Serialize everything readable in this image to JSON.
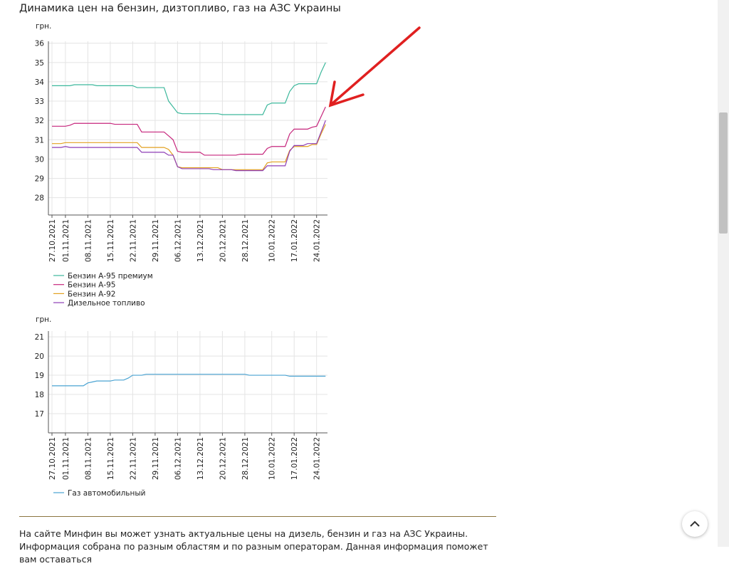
{
  "heading": "Динамика цен на бензин, дизтопливо, газ на АЗС Украины",
  "paragraph": "На сайте Минфин вы может узнать актуальные цены на дизель, бензин и газ на АЗС Украины. Информация собрана по разным областям и по разным операторам. Данная информация поможет вам оставаться",
  "chart_data": [
    {
      "type": "line",
      "y_unit": "грн.",
      "grid": true,
      "categories": [
        "27.10.2021",
        null,
        null,
        "01.11.2021",
        null,
        null,
        null,
        null,
        "08.11.2021",
        null,
        null,
        null,
        null,
        "15.11.2021",
        null,
        null,
        null,
        null,
        "22.11.2021",
        null,
        null,
        null,
        null,
        "29.11.2021",
        null,
        null,
        null,
        null,
        "06.12.2021",
        null,
        null,
        null,
        null,
        "13.12.2021",
        null,
        null,
        null,
        null,
        "20.12.2021",
        null,
        null,
        null,
        null,
        "28.12.2021",
        null,
        null,
        null,
        null,
        null,
        "10.01.2022",
        null,
        null,
        null,
        null,
        "17.01.2022",
        null,
        null,
        null,
        null,
        "24.01.2022",
        null,
        null
      ],
      "ylim": [
        27.1,
        36.1
      ],
      "yticks": [
        28,
        29,
        30,
        31,
        32,
        33,
        34,
        35,
        36
      ],
      "series": [
        {
          "name": "Бензин А-95 премиум",
          "color": "#3db89c",
          "values": [
            33.8,
            33.8,
            33.8,
            33.8,
            33.8,
            33.85,
            33.85,
            33.85,
            33.85,
            33.85,
            33.8,
            33.8,
            33.8,
            33.8,
            33.8,
            33.8,
            33.8,
            33.8,
            33.8,
            33.7,
            33.7,
            33.7,
            33.7,
            33.7,
            33.7,
            33.7,
            33.0,
            32.7,
            32.4,
            32.35,
            32.35,
            32.35,
            32.35,
            32.35,
            32.35,
            32.35,
            32.35,
            32.35,
            32.3,
            32.3,
            32.3,
            32.3,
            32.3,
            32.3,
            32.3,
            32.3,
            32.3,
            32.3,
            32.8,
            32.9,
            32.9,
            32.9,
            32.9,
            33.5,
            33.8,
            33.9,
            33.9,
            33.9,
            33.9,
            33.9,
            34.5,
            35.0
          ]
        },
        {
          "name": "Бензин А-95",
          "color": "#c6267c",
          "values": [
            31.7,
            31.7,
            31.7,
            31.7,
            31.75,
            31.85,
            31.85,
            31.85,
            31.85,
            31.85,
            31.85,
            31.85,
            31.85,
            31.85,
            31.8,
            31.8,
            31.8,
            31.8,
            31.8,
            31.8,
            31.4,
            31.4,
            31.4,
            31.4,
            31.4,
            31.4,
            31.2,
            31.0,
            30.4,
            30.35,
            30.35,
            30.35,
            30.35,
            30.35,
            30.2,
            30.2,
            30.2,
            30.2,
            30.2,
            30.2,
            30.2,
            30.2,
            30.25,
            30.25,
            30.25,
            30.25,
            30.25,
            30.25,
            30.55,
            30.65,
            30.65,
            30.65,
            30.65,
            31.3,
            31.55,
            31.55,
            31.55,
            31.55,
            31.65,
            31.7,
            32.2,
            32.7
          ]
        },
        {
          "name": "Бензин А-92",
          "color": "#e2a120",
          "values": [
            30.8,
            30.8,
            30.8,
            30.85,
            30.85,
            30.85,
            30.85,
            30.85,
            30.85,
            30.85,
            30.85,
            30.85,
            30.85,
            30.85,
            30.85,
            30.85,
            30.85,
            30.85,
            30.85,
            30.85,
            30.6,
            30.6,
            30.6,
            30.6,
            30.6,
            30.6,
            30.5,
            30.2,
            29.6,
            29.55,
            29.55,
            29.55,
            29.55,
            29.55,
            29.55,
            29.55,
            29.55,
            29.55,
            29.45,
            29.45,
            29.45,
            29.45,
            29.45,
            29.45,
            29.45,
            29.45,
            29.45,
            29.45,
            29.8,
            29.85,
            29.85,
            29.85,
            29.85,
            30.45,
            30.65,
            30.65,
            30.65,
            30.65,
            30.75,
            30.75,
            31.3,
            31.8
          ]
        },
        {
          "name": "Дизельное топливо",
          "color": "#8e3db6",
          "values": [
            30.6,
            30.6,
            30.6,
            30.65,
            30.6,
            30.6,
            30.6,
            30.6,
            30.6,
            30.6,
            30.6,
            30.6,
            30.6,
            30.6,
            30.6,
            30.6,
            30.6,
            30.6,
            30.6,
            30.6,
            30.35,
            30.35,
            30.35,
            30.35,
            30.35,
            30.35,
            30.2,
            30.2,
            29.6,
            29.5,
            29.5,
            29.5,
            29.5,
            29.5,
            29.5,
            29.5,
            29.45,
            29.45,
            29.45,
            29.45,
            29.45,
            29.4,
            29.4,
            29.4,
            29.4,
            29.4,
            29.4,
            29.4,
            29.65,
            29.65,
            29.65,
            29.65,
            29.65,
            30.4,
            30.7,
            30.7,
            30.7,
            30.8,
            30.8,
            30.8,
            31.4,
            32.0
          ]
        }
      ]
    },
    {
      "type": "line",
      "y_unit": "грн.",
      "grid": true,
      "categories": [
        "27.10.2021",
        null,
        null,
        "01.11.2021",
        null,
        null,
        null,
        null,
        "08.11.2021",
        null,
        null,
        null,
        null,
        "15.11.2021",
        null,
        null,
        null,
        null,
        "22.11.2021",
        null,
        null,
        null,
        null,
        "29.11.2021",
        null,
        null,
        null,
        null,
        "06.12.2021",
        null,
        null,
        null,
        null,
        "13.12.2021",
        null,
        null,
        null,
        null,
        "20.12.2021",
        null,
        null,
        null,
        null,
        "28.12.2021",
        null,
        null,
        null,
        null,
        null,
        "10.01.2022",
        null,
        null,
        null,
        null,
        "17.01.2022",
        null,
        null,
        null,
        null,
        "24.01.2022",
        null,
        null
      ],
      "ylim": [
        16,
        21.3
      ],
      "yticks": [
        17,
        18,
        19,
        20,
        21
      ],
      "series": [
        {
          "name": "Газ автомобильный",
          "color": "#4aa3d2",
          "values": [
            18.45,
            18.45,
            18.45,
            18.45,
            18.45,
            18.45,
            18.45,
            18.45,
            18.6,
            18.65,
            18.7,
            18.7,
            18.7,
            18.7,
            18.75,
            18.75,
            18.75,
            18.85,
            19.0,
            19.0,
            19.0,
            19.05,
            19.05,
            19.05,
            19.05,
            19.05,
            19.05,
            19.05,
            19.05,
            19.05,
            19.05,
            19.05,
            19.05,
            19.05,
            19.05,
            19.05,
            19.05,
            19.05,
            19.05,
            19.05,
            19.05,
            19.05,
            19.05,
            19.05,
            19.0,
            19.0,
            19.0,
            19.0,
            19.0,
            19.0,
            19.0,
            19.0,
            19.0,
            18.95,
            18.95,
            18.95,
            18.95,
            18.95,
            18.95,
            18.95,
            18.95,
            18.95
          ]
        }
      ]
    }
  ]
}
